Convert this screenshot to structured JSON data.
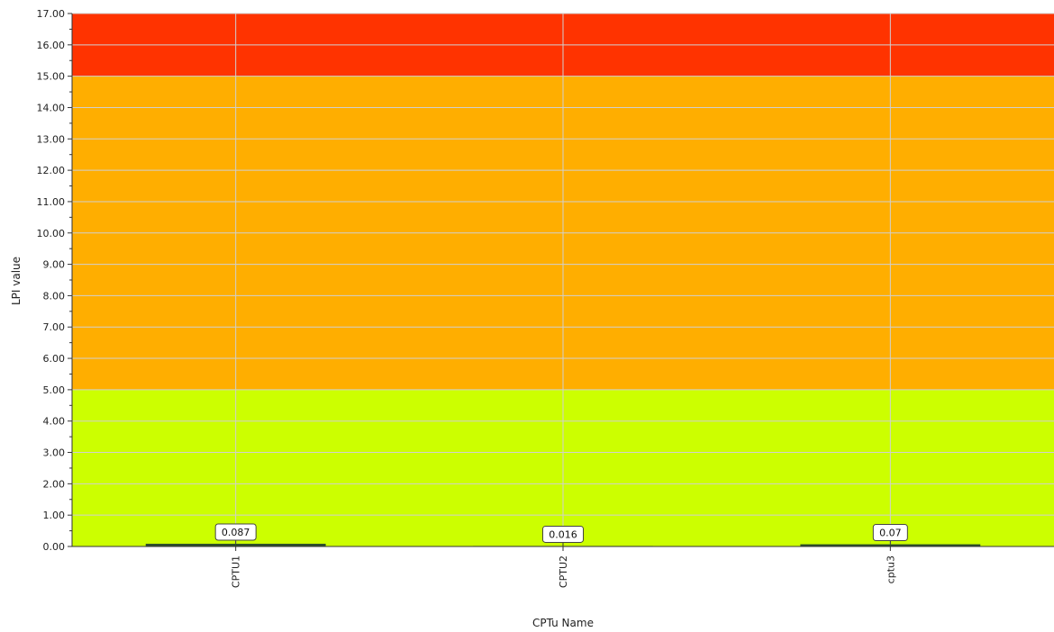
{
  "chart_data": {
    "type": "bar",
    "xlabel": "CPTu Name",
    "ylabel": "LPI value",
    "ylim": [
      0,
      17
    ],
    "y_tick_step": 1,
    "y_tick_decimals": 2,
    "grid": true,
    "categories": [
      "CPTU1",
      "CPTU2",
      "cptu3"
    ],
    "values": [
      0.087,
      0.016,
      0.07
    ],
    "value_labels": [
      "0.087",
      "0.016",
      "0.07"
    ],
    "bar_color": "#2d4f2a",
    "bands": [
      {
        "from": 0,
        "to": 5,
        "color": "#ccff00"
      },
      {
        "from": 5,
        "to": 15,
        "color": "#ffae00"
      },
      {
        "from": 15,
        "to": 17,
        "color": "#ff3300"
      }
    ]
  }
}
